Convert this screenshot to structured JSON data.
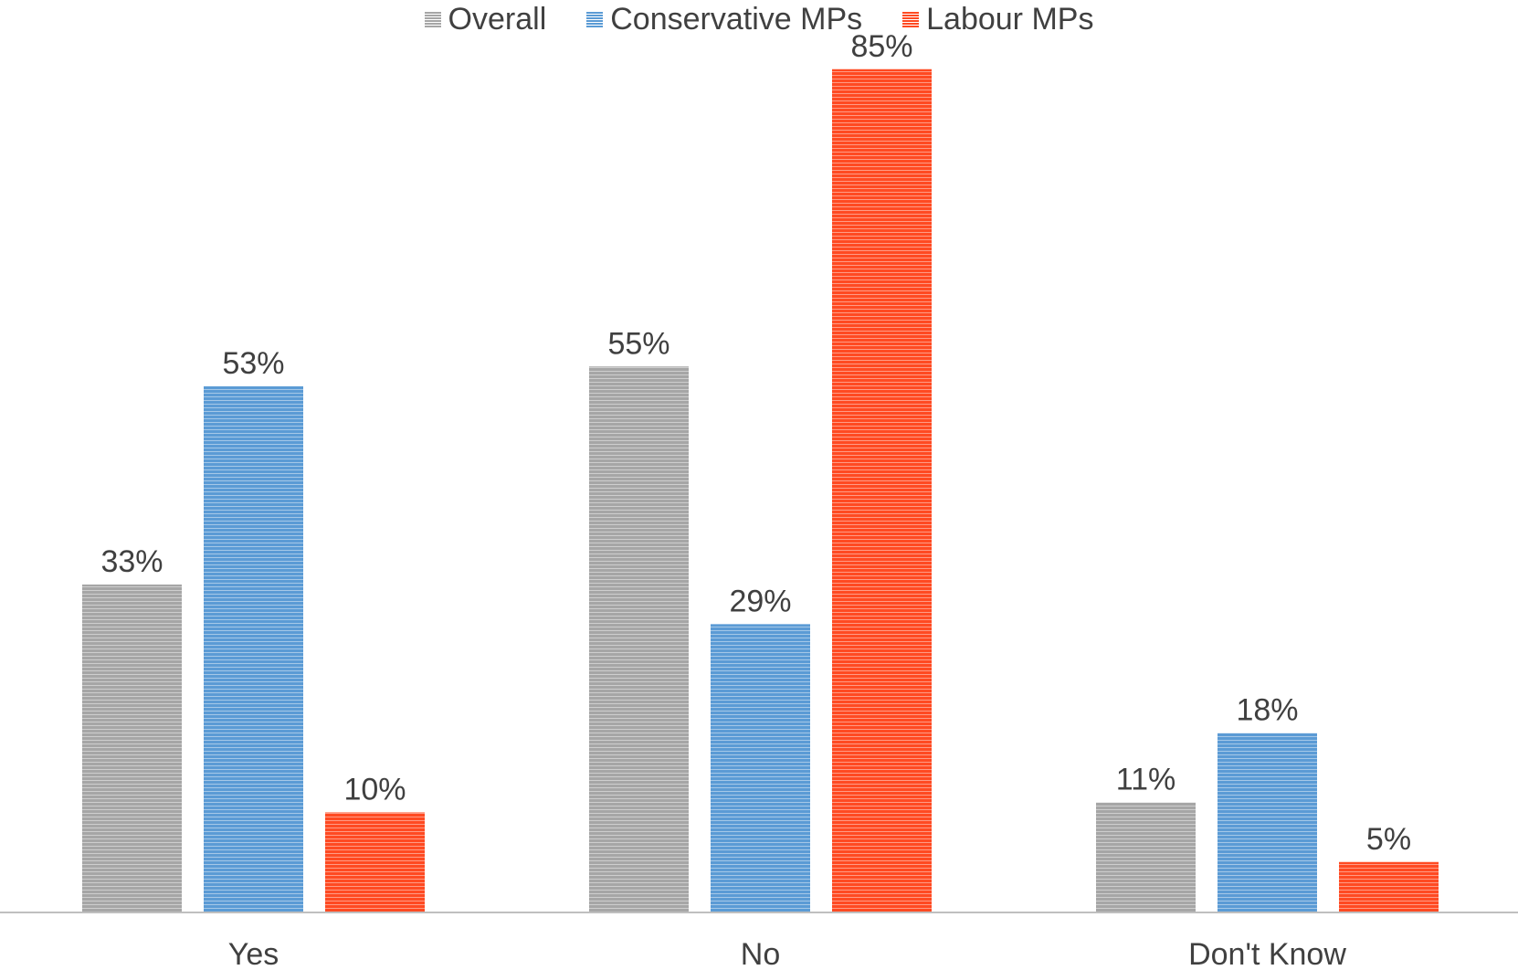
{
  "chart_data": {
    "type": "bar",
    "categories": [
      "Yes",
      "No",
      "Don't Know"
    ],
    "series": [
      {
        "name": "Overall",
        "values": [
          33,
          55,
          11
        ],
        "color": "#a6a6a6"
      },
      {
        "name": "Conservative MPs",
        "values": [
          53,
          29,
          18
        ],
        "color": "#5b9bd5"
      },
      {
        "name": "Labour MPs",
        "values": [
          10,
          85,
          5
        ],
        "color": "#ff4a22"
      }
    ],
    "value_suffix": "%",
    "ylim": [
      0,
      100
    ],
    "legend_position": "top-center",
    "grid": false,
    "bar_pattern": "horizontal-stripes",
    "axis_color": "#bfbfbf",
    "text_color": "#404040"
  }
}
